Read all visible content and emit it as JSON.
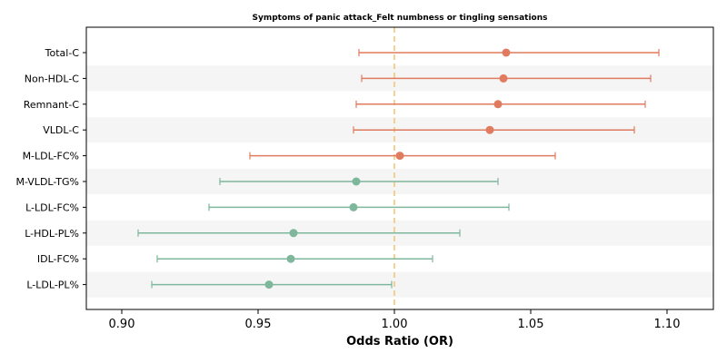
{
  "chart_data": {
    "type": "forest",
    "title": "Symptoms of panic attack_Felt numbness or tingling sensations",
    "xlabel": "Odds Ratio (OR)",
    "ylabel": "",
    "xlim": [
      0.887,
      1.117
    ],
    "xticks": [
      0.9,
      0.95,
      1.0,
      1.05,
      1.1
    ],
    "xtick_labels": [
      "0.90",
      "0.95",
      "1.00",
      "1.05",
      "1.10"
    ],
    "reference_line": 1.0,
    "reference_color": "#f2c46d",
    "positive_color": "#e07b5f",
    "negative_color": "#7fb79c",
    "band_color": "#f5f5f5",
    "grid": false,
    "rows": [
      {
        "label": "Total-C",
        "or": 1.041,
        "lower": 0.987,
        "upper": 1.097
      },
      {
        "label": "Non-HDL-C",
        "or": 1.04,
        "lower": 0.988,
        "upper": 1.094
      },
      {
        "label": "Remnant-C",
        "or": 1.038,
        "lower": 0.986,
        "upper": 1.092
      },
      {
        "label": "VLDL-C",
        "or": 1.035,
        "lower": 0.985,
        "upper": 1.088
      },
      {
        "label": "M-LDL-FC%",
        "or": 1.002,
        "lower": 0.947,
        "upper": 1.059
      },
      {
        "label": "M-VLDL-TG%",
        "or": 0.986,
        "lower": 0.936,
        "upper": 1.038
      },
      {
        "label": "L-LDL-FC%",
        "or": 0.985,
        "lower": 0.932,
        "upper": 1.042
      },
      {
        "label": "L-HDL-PL%",
        "or": 0.963,
        "lower": 0.906,
        "upper": 1.024
      },
      {
        "label": "IDL-FC%",
        "or": 0.962,
        "lower": 0.913,
        "upper": 1.014
      },
      {
        "label": "L-LDL-PL%",
        "or": 0.954,
        "lower": 0.911,
        "upper": 0.999
      }
    ]
  }
}
